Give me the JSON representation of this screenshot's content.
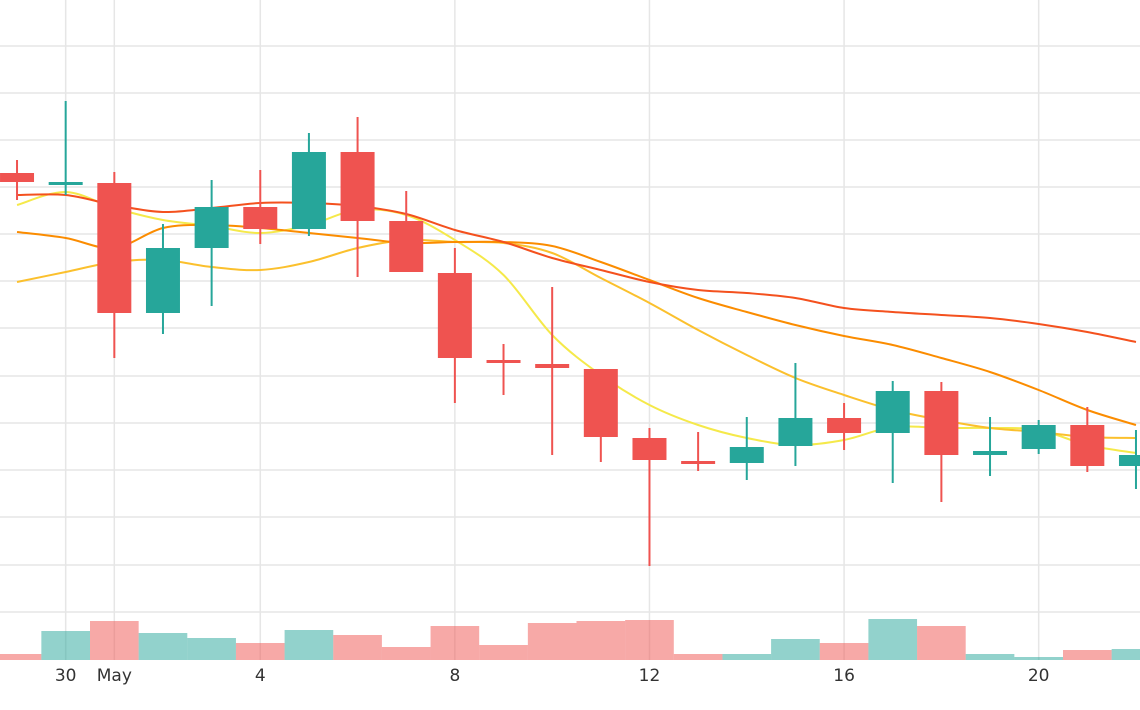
{
  "chart_data": {
    "type": "candlestick",
    "categories": [
      null,
      "30",
      "May",
      null,
      null,
      "4",
      null,
      null,
      null,
      "8",
      null,
      null,
      null,
      "12",
      null,
      null,
      null,
      "16",
      null,
      null,
      null,
      "20",
      null,
      null
    ],
    "open": [
      487,
      476,
      477,
      347,
      412,
      453,
      431,
      508,
      439,
      387,
      300,
      296,
      291,
      222,
      199,
      197,
      214,
      242,
      227,
      269,
      205,
      211,
      235,
      194
    ],
    "high": [
      500,
      559,
      488,
      436,
      480,
      490,
      527,
      543,
      469,
      412,
      316,
      373,
      291,
      232,
      228,
      243,
      297,
      257,
      279,
      278,
      243,
      240,
      253,
      230
    ],
    "low": [
      460,
      465,
      302,
      326,
      354,
      416,
      424,
      383,
      388,
      257,
      265,
      205,
      198,
      94,
      189,
      180,
      194,
      210,
      177,
      158,
      184,
      206,
      188,
      171
    ],
    "close": [
      478,
      478,
      347,
      412,
      453,
      431,
      508,
      439,
      388,
      302,
      297,
      292,
      223,
      200,
      197,
      213,
      242,
      227,
      269,
      205,
      209,
      235,
      194,
      205
    ],
    "up_color": "#26a69a",
    "down_color": "#ef5350",
    "volume": [
      6,
      29,
      39,
      27,
      22,
      17,
      30,
      25,
      13,
      34,
      15,
      37,
      39,
      40,
      6,
      6,
      21,
      17,
      41,
      34,
      6,
      3,
      10,
      11
    ],
    "volume_lim": [
      0,
      660
    ],
    "series": [
      {
        "color": "#f5e94a",
        "values": [
          455,
          468,
          452,
          440,
          434,
          427,
          435,
          450,
          445,
          420,
          385,
          325,
          285,
          255,
          235,
          222,
          215,
          220,
          233,
          232,
          232,
          230,
          215,
          207
        ]
      },
      {
        "color": "#fbc02d",
        "values": [
          378,
          388,
          398,
          400,
          393,
          390,
          398,
          412,
          420,
          418,
          417,
          407,
          382,
          357,
          330,
          305,
          282,
          265,
          250,
          240,
          232,
          228,
          223,
          222
        ]
      },
      {
        "color": "#fb8c00",
        "values": [
          428,
          422,
          412,
          432,
          435,
          432,
          427,
          422,
          417,
          418,
          418,
          414,
          398,
          380,
          362,
          348,
          335,
          324,
          315,
          302,
          288,
          270,
          250,
          235
        ]
      },
      {
        "color": "#f4511e",
        "values": [
          465,
          465,
          455,
          448,
          452,
          457,
          457,
          454,
          446,
          430,
          418,
          402,
          390,
          378,
          370,
          367,
          362,
          352,
          348,
          345,
          342,
          336,
          328,
          318
        ]
      }
    ],
    "ylim": [
      0,
      660
    ],
    "yticks": [
      48,
      95,
      143,
      190,
      237,
      284,
      332,
      379,
      426,
      473,
      520,
      567,
      614
    ],
    "grid": true
  }
}
